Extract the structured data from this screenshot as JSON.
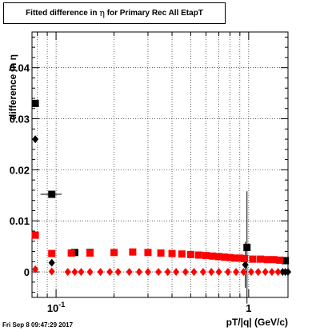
{
  "header": {
    "title_prefix": "Fitted difference in",
    "title_symbol": "η",
    "title_suffix": "for Primary Rec All EtapT"
  },
  "footer": {
    "timestamp": "Fri Sep  8 09:47:29 2017"
  },
  "chart_data": {
    "type": "scatter",
    "title": "Fitted difference in η for Primary Rec All EtapT",
    "xlabel": "pT/|q| (GeV/c)",
    "ylabel": "difference in η",
    "x_scale": "log",
    "xlim": [
      0.075,
      1.6
    ],
    "ylim": [
      -0.005,
      0.047
    ],
    "grid": true,
    "yticks": [
      0,
      0.01,
      0.02,
      0.03,
      0.04
    ],
    "ytick_labels": [
      "0",
      "0.01",
      "0.02",
      "0.03",
      "0.04"
    ],
    "xtick_labels": [
      {
        "value": 0.1,
        "base": "10",
        "exp": "-1"
      },
      {
        "value": 1,
        "base": "1",
        "exp": ""
      }
    ],
    "colors": {
      "black": "#000000",
      "red": "#ff0000"
    },
    "series": [
      {
        "color": "#000000",
        "marker": "square",
        "points": [
          {
            "x": 0.078,
            "y": 0.033,
            "xerr": 0.002,
            "yerr": 0.0003
          },
          {
            "x": 0.095,
            "y": 0.0152,
            "xerr": 0.012,
            "yerr": 0.0005
          },
          {
            "x": 0.125,
            "y": 0.0038
          },
          {
            "x": 0.15,
            "y": 0.0038
          },
          {
            "x": 0.98,
            "y": 0.0048,
            "yerr": 0.011
          },
          {
            "x": 1.55,
            "y": 0.0022
          }
        ]
      },
      {
        "color": "#000000",
        "marker": "diamond",
        "points": [
          {
            "x": 0.078,
            "y": 0.026
          },
          {
            "x": 0.095,
            "y": 0.0018
          },
          {
            "x": 0.96,
            "y": 0.0014,
            "yerr": 0.0045
          },
          {
            "x": 1.5,
            "y": 0.0
          },
          {
            "x": 1.55,
            "y": 0.0
          },
          {
            "x": 1.6,
            "y": 0.0
          }
        ]
      },
      {
        "color": "#ff0000",
        "marker": "square",
        "points": [
          {
            "x": 0.078,
            "y": 0.0072
          },
          {
            "x": 0.095,
            "y": 0.0036
          },
          {
            "x": 0.12,
            "y": 0.0037
          },
          {
            "x": 0.15,
            "y": 0.0037
          },
          {
            "x": 0.2,
            "y": 0.0038
          },
          {
            "x": 0.25,
            "y": 0.0039
          },
          {
            "x": 0.3,
            "y": 0.0038
          },
          {
            "x": 0.35,
            "y": 0.0037
          },
          {
            "x": 0.4,
            "y": 0.0036
          },
          {
            "x": 0.45,
            "y": 0.0035
          },
          {
            "x": 0.5,
            "y": 0.0034
          },
          {
            "x": 0.55,
            "y": 0.0033
          },
          {
            "x": 0.6,
            "y": 0.0032
          },
          {
            "x": 0.65,
            "y": 0.0031
          },
          {
            "x": 0.7,
            "y": 0.003
          },
          {
            "x": 0.75,
            "y": 0.0029
          },
          {
            "x": 0.8,
            "y": 0.0028
          },
          {
            "x": 0.85,
            "y": 0.0027
          },
          {
            "x": 0.9,
            "y": 0.0027
          },
          {
            "x": 0.95,
            "y": 0.0026
          },
          {
            "x": 1.05,
            "y": 0.0025
          },
          {
            "x": 1.15,
            "y": 0.0025
          },
          {
            "x": 1.25,
            "y": 0.0024
          },
          {
            "x": 1.35,
            "y": 0.0024
          },
          {
            "x": 1.45,
            "y": 0.0023
          }
        ]
      },
      {
        "color": "#ff0000",
        "marker": "diamond",
        "points": [
          {
            "x": 0.078,
            "y": 0.0005
          },
          {
            "x": 0.095,
            "y": 0.0001
          },
          {
            "x": 0.115,
            "y": 0.0
          },
          {
            "x": 0.125,
            "y": 0.0
          },
          {
            "x": 0.135,
            "y": 0.0
          },
          {
            "x": 0.15,
            "y": 0.0
          },
          {
            "x": 0.17,
            "y": 0.0
          },
          {
            "x": 0.19,
            "y": 0.0
          },
          {
            "x": 0.21,
            "y": 0.0
          },
          {
            "x": 0.24,
            "y": 0.0
          },
          {
            "x": 0.27,
            "y": 0.0
          },
          {
            "x": 0.3,
            "y": 0.0
          },
          {
            "x": 0.34,
            "y": 0.0
          },
          {
            "x": 0.38,
            "y": 0.0
          },
          {
            "x": 0.42,
            "y": 0.0
          },
          {
            "x": 0.47,
            "y": 0.0
          },
          {
            "x": 0.52,
            "y": 0.0
          },
          {
            "x": 0.58,
            "y": 0.0
          },
          {
            "x": 0.64,
            "y": 0.0
          },
          {
            "x": 0.7,
            "y": 0.0
          },
          {
            "x": 0.78,
            "y": 0.0
          },
          {
            "x": 0.86,
            "y": 0.0
          },
          {
            "x": 0.94,
            "y": 0.0
          },
          {
            "x": 1.03,
            "y": 0.0
          },
          {
            "x": 1.12,
            "y": 0.0
          },
          {
            "x": 1.22,
            "y": 0.0
          },
          {
            "x": 1.32,
            "y": 0.0
          },
          {
            "x": 1.42,
            "y": 0.0
          }
        ]
      }
    ]
  }
}
